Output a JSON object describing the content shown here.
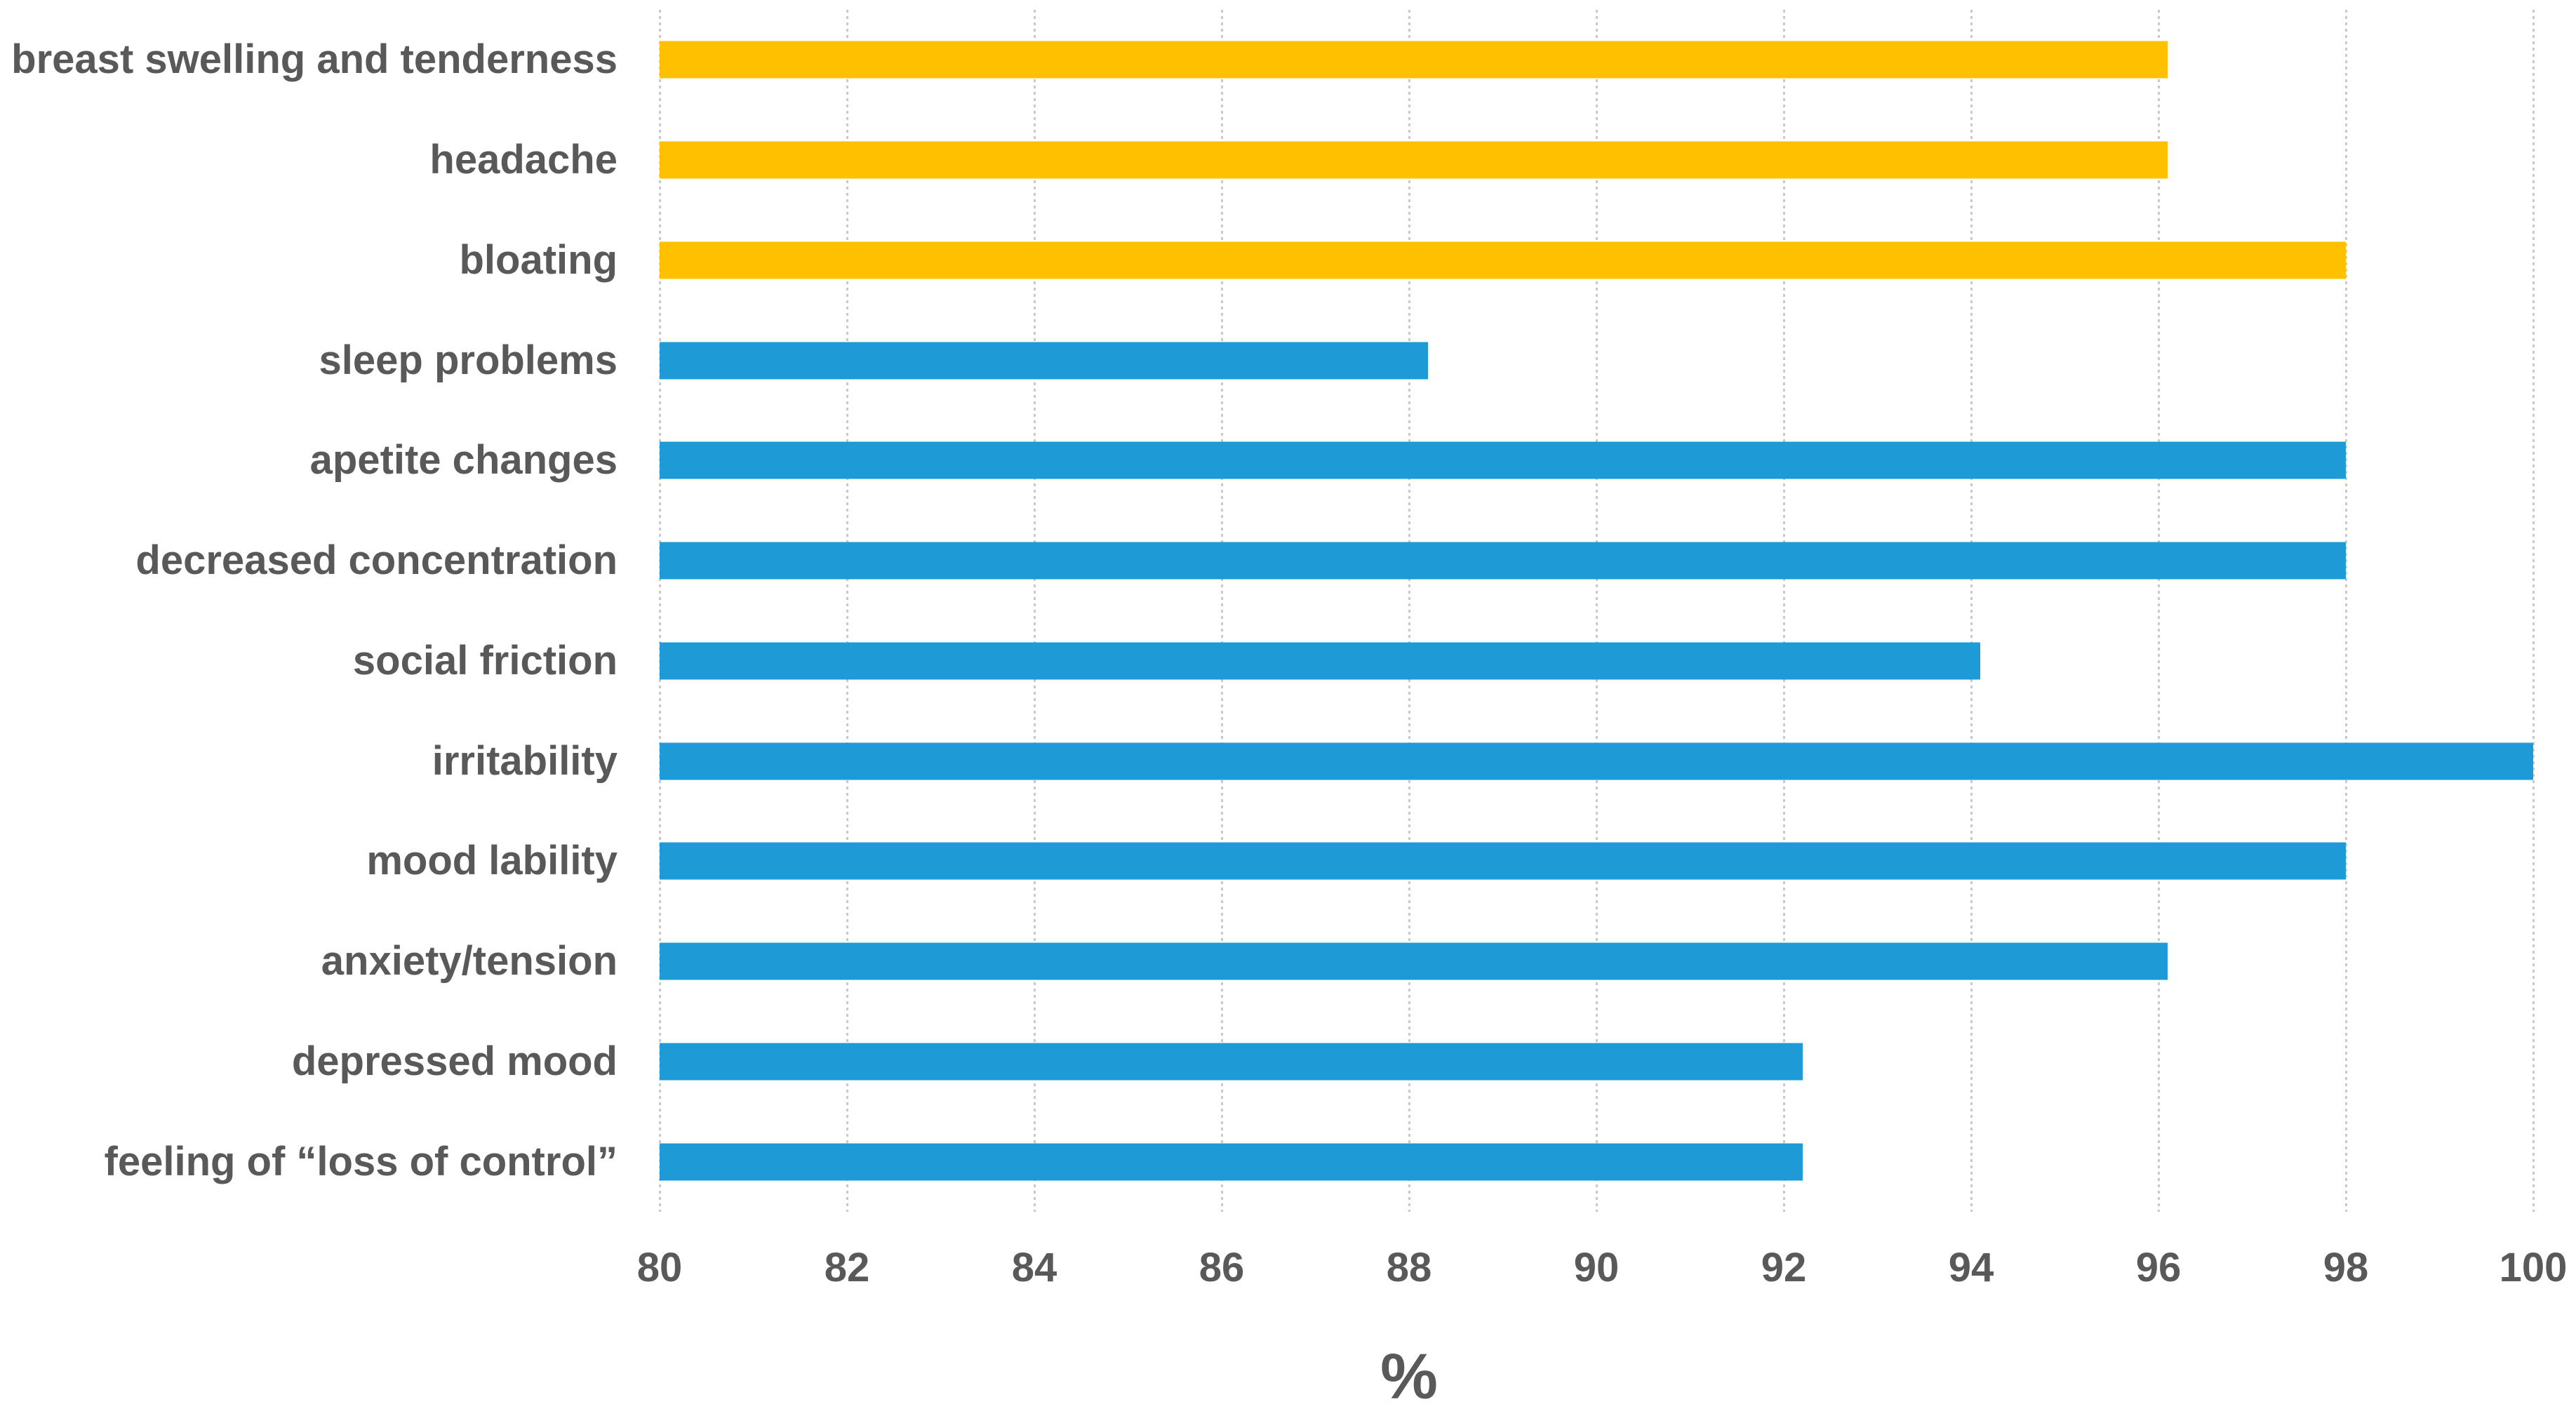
{
  "chart_data": {
    "type": "bar",
    "orientation": "horizontal",
    "title": "",
    "xlabel": "%",
    "ylabel": "",
    "xlim": [
      80,
      100
    ],
    "x_ticks": [
      80,
      82,
      84,
      86,
      88,
      90,
      92,
      94,
      96,
      98,
      100
    ],
    "grid": "vertical dotted gridlines, no axis lines",
    "legend": "none",
    "categories": [
      "breast swelling and tenderness",
      "headache",
      "bloating",
      "sleep problems",
      "apetite changes",
      "decreased concentration",
      "social friction",
      "irritability",
      "mood lability",
      "anxiety/tension",
      "depressed mood",
      "feeling of “loss of control”"
    ],
    "values": [
      96.1,
      96.1,
      98,
      88.2,
      98,
      98,
      94.1,
      100,
      98,
      96.1,
      92.2,
      92.2
    ],
    "bar_colors": [
      "#FFC000",
      "#FFC000",
      "#FFC000",
      "#1E9BD7",
      "#1E9BD7",
      "#1E9BD7",
      "#1E9BD7",
      "#1E9BD7",
      "#1E9BD7",
      "#1E9BD7",
      "#1E9BD7",
      "#1E9BD7"
    ],
    "colors": {
      "highlight_series": "#FFC000",
      "base_series": "#1E9BD7",
      "gridline": "#C9C9C9",
      "text": "#595959",
      "background": "#FFFFFF"
    }
  }
}
